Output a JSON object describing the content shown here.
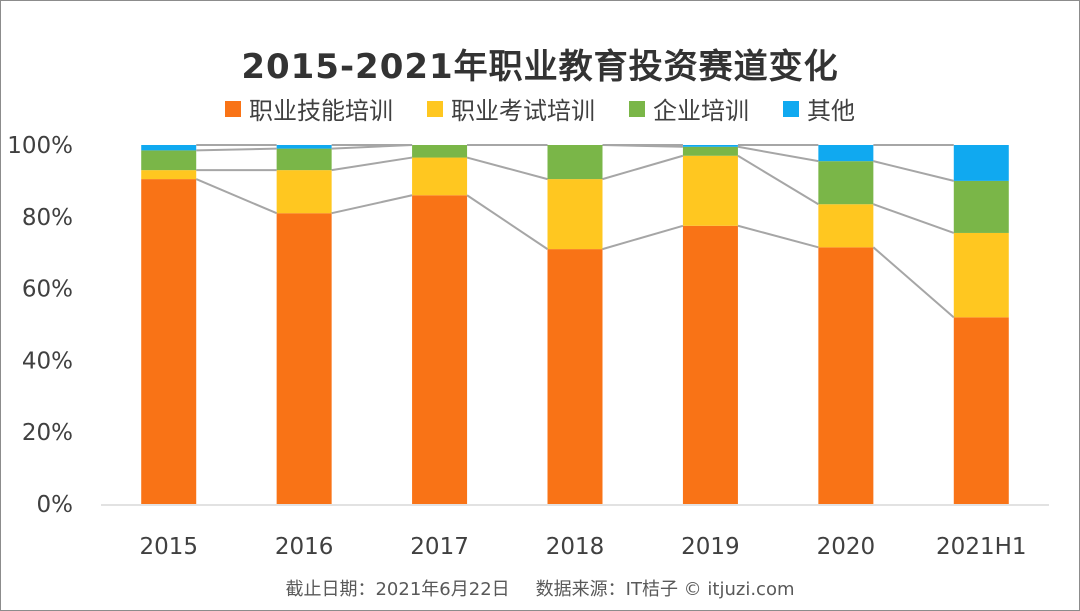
{
  "chart_data": {
    "type": "bar",
    "stacked": true,
    "title": "2015-2021年职业教育投资赛道变化",
    "categories": [
      "2015",
      "2016",
      "2017",
      "2018",
      "2019",
      "2020",
      "2021H1"
    ],
    "series": [
      {
        "name": "职业技能培训",
        "color": "#f97316",
        "values": [
          90.5,
          81,
          86,
          71,
          77.5,
          71.5,
          52
        ]
      },
      {
        "name": "职业考试培训",
        "color": "#ffc720",
        "values": [
          2.5,
          12,
          10.5,
          19.5,
          19.5,
          12,
          23.5
        ]
      },
      {
        "name": "企业培训",
        "color": "#7ab648",
        "values": [
          5.5,
          6,
          3.5,
          9.5,
          2.5,
          12,
          14.5
        ]
      },
      {
        "name": "其他",
        "color": "#10a9f0",
        "values": [
          1.5,
          1,
          0,
          0,
          0.5,
          4.5,
          10
        ]
      }
    ],
    "yticks": [
      "0%",
      "20%",
      "40%",
      "60%",
      "80%",
      "100%"
    ],
    "ylim": [
      0,
      100
    ],
    "legend_position": "top",
    "grid": false,
    "series_connector_lines": true
  },
  "footer": {
    "date_text": "截止日期：2021年6月22日",
    "source_text": "数据来源：IT桔子 © itjuzi.com"
  }
}
